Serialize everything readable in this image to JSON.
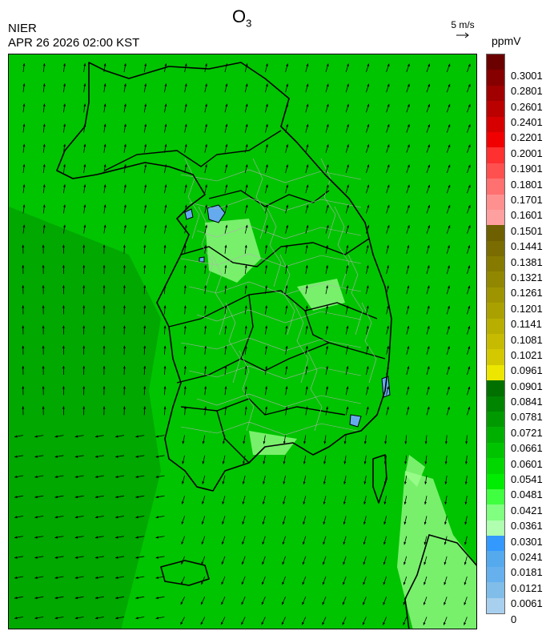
{
  "header": {
    "organization": "NIER",
    "datetime": "APR 26 2026 02:00 KST",
    "title_main": "O",
    "title_sub": "3",
    "vector_reference": "5 m/s",
    "unit": "ppmV"
  },
  "legend": {
    "labels": [
      "0.3001",
      "0.2801",
      "0.2601",
      "0.2401",
      "0.2201",
      "0.2001",
      "0.1901",
      "0.1801",
      "0.1701",
      "0.1601",
      "0.1501",
      "0.1441",
      "0.1381",
      "0.1321",
      "0.1261",
      "0.1201",
      "0.1141",
      "0.1081",
      "0.1021",
      "0.0961",
      "0.0901",
      "0.0841",
      "0.0781",
      "0.0721",
      "0.0661",
      "0.0601",
      "0.0541",
      "0.0481",
      "0.0421",
      "0.0361",
      "0.0301",
      "0.0241",
      "0.0181",
      "0.0121",
      "0.0061",
      "0"
    ],
    "colors": [
      "#6b0000",
      "#860000",
      "#a00000",
      "#bb0000",
      "#d60000",
      "#f00000",
      "#ff3030",
      "#ff5050",
      "#ff7070",
      "#ff9090",
      "#ffa0a0",
      "#6e5f00",
      "#7a6c00",
      "#867a00",
      "#928700",
      "#9e9400",
      "#aaa100",
      "#b8ae00",
      "#c6bb00",
      "#d4c800",
      "#ece600",
      "#007000",
      "#008500",
      "#009a00",
      "#00b000",
      "#00c400",
      "#00d800",
      "#00ec00",
      "#40ff40",
      "#80ff80",
      "#b0ffb0",
      "#3399ff",
      "#55aaee",
      "#66b0ee",
      "#80bde8",
      "#a8d0ee"
    ]
  },
  "map": {
    "base_color": "#00c400",
    "sea_west_color": "#00a800",
    "boundary_color": "#000000",
    "admin_line_color": "#b0b0b0",
    "low_patch_color": "#66aaee",
    "light_patch_color": "#a0ff90"
  }
}
